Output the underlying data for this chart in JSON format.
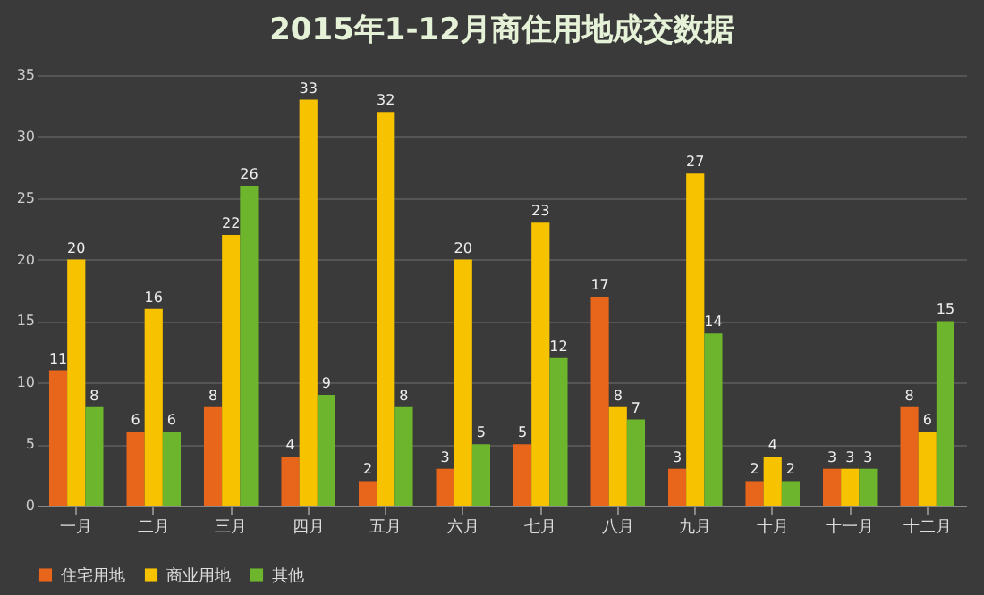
{
  "chart_data": {
    "type": "bar",
    "title": "2015年1-12月商住用地成交数据",
    "categories": [
      "一月",
      "二月",
      "三月",
      "四月",
      "五月",
      "六月",
      "七月",
      "八月",
      "九月",
      "十月",
      "十一月",
      "十二月"
    ],
    "series": [
      {
        "name": "住宅用地",
        "color": "#e8651c",
        "values": [
          11,
          6,
          8,
          4,
          2,
          3,
          5,
          17,
          3,
          2,
          3,
          8
        ]
      },
      {
        "name": "商业用地",
        "color": "#f7c200",
        "values": [
          20,
          16,
          22,
          33,
          32,
          20,
          23,
          8,
          27,
          4,
          3,
          6
        ]
      },
      {
        "name": "其他",
        "color": "#6eb52e",
        "values": [
          8,
          6,
          26,
          9,
          8,
          5,
          12,
          7,
          14,
          2,
          3,
          15
        ]
      }
    ],
    "ylim": [
      0,
      35
    ],
    "yticks": [
      0,
      5,
      10,
      15,
      20,
      25,
      30,
      35
    ],
    "grid": "y",
    "legend": "bottom",
    "data_labels": true
  }
}
